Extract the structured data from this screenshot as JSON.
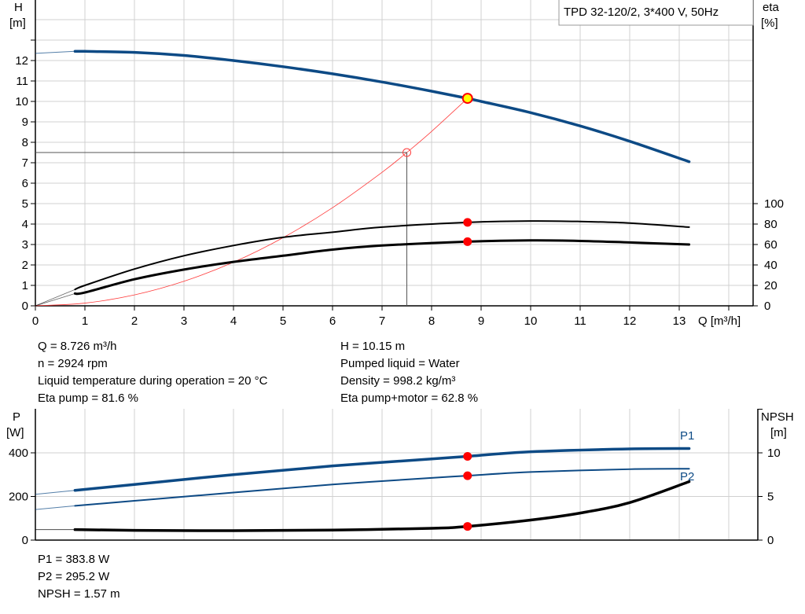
{
  "title": "TPD 32-120/2, 3*400 V, 50Hz",
  "colors": {
    "head": "#0d4a85",
    "power": "#0d4a85",
    "efficiency": "#000000",
    "npsh": "#000000",
    "system": "#ff3b3b",
    "duty_point": "#ff0000",
    "duty_fill": "#ffff00"
  },
  "info": {
    "q": "Q = 8.726 m³/h",
    "n": "n = 2924 rpm",
    "temp": "Liquid temperature during operation = 20 °C",
    "eta_pump": "Eta pump = 81.6 %",
    "h": "H = 10.15 m",
    "liquid": "Pumped liquid = Water",
    "density": "Density = 998.2 kg/m³",
    "eta_total": "Eta pump+motor = 62.8 %",
    "p1": "P1 = 383.8 W",
    "p2": "P2 = 295.2 W",
    "npsh": "NPSH = 1.57 m"
  },
  "chart_data": [
    {
      "type": "line",
      "xlabel": "Q [m³/h]",
      "ylabel": "H",
      "ylabel_unit": "[m]",
      "y2label": "eta",
      "y2label_unit": "[%]",
      "xlim": [
        0,
        14.5
      ],
      "ylim": [
        0,
        15
      ],
      "y2lim": [
        0,
        100
      ],
      "grid": true,
      "x_ticks": [
        "0",
        "1",
        "2",
        "3",
        "4",
        "5",
        "6",
        "7",
        "8",
        "9",
        "10",
        "11",
        "12",
        "13"
      ],
      "y_ticks": [
        "0",
        "1",
        "2",
        "3",
        "4",
        "5",
        "6",
        "7",
        "8",
        "9",
        "10",
        "11",
        "12"
      ],
      "y2_ticks": [
        "0",
        "20",
        "40",
        "60",
        "80",
        "100"
      ],
      "series": [
        {
          "key": "head",
          "axis": "left",
          "x": [
            0.8,
            1,
            2,
            3,
            4,
            5,
            6,
            7,
            8,
            8.726,
            9,
            10,
            11,
            12,
            13.2
          ],
          "y": [
            12.45,
            12.45,
            12.4,
            12.25,
            12.0,
            11.7,
            11.35,
            10.95,
            10.5,
            10.15,
            10.0,
            9.45,
            8.8,
            8.05,
            7.05
          ],
          "extrapolated_from": [
            0,
            12.35
          ]
        },
        {
          "key": "eta_pump",
          "axis": "right",
          "x": [
            0.8,
            1,
            2,
            3,
            4,
            5,
            6,
            7,
            8.726,
            10,
            11,
            12,
            13.2
          ],
          "y": [
            16,
            20,
            36,
            49,
            59,
            67,
            72,
            77,
            81.6,
            83,
            82.5,
            81,
            77
          ]
        },
        {
          "key": "eta_total",
          "axis": "right",
          "x": [
            0.8,
            1,
            2,
            3,
            4,
            5,
            6,
            7,
            8.726,
            10,
            11,
            12,
            13.2
          ],
          "y": [
            12,
            13,
            26,
            35.5,
            43,
            49,
            55,
            59,
            62.8,
            64,
            63.5,
            62,
            60
          ]
        },
        {
          "key": "system",
          "axis": "left",
          "x": [
            0,
            1,
            2,
            3,
            4,
            5,
            6,
            7,
            7.5,
            8,
            8.726
          ],
          "y": [
            0,
            0.133,
            0.533,
            1.2,
            2.133,
            3.333,
            4.8,
            6.533,
            7.5,
            8.533,
            10.15
          ]
        }
      ],
      "duty_point": {
        "q": 8.726,
        "h": 10.15,
        "eta_pump": 81.6,
        "eta_total": 62.8
      },
      "requested_point": {
        "q": 7.5,
        "h": 7.5
      }
    },
    {
      "type": "line",
      "ylabel": "P",
      "ylabel_unit": "[W]",
      "y2label": "NPSH",
      "y2label_unit": "[m]",
      "ylim": [
        0,
        600
      ],
      "y2lim": [
        0,
        15
      ],
      "y_ticks": [
        "0",
        "200",
        "400"
      ],
      "y2_ticks": [
        "0",
        "5",
        "10"
      ],
      "grid": true,
      "series": [
        {
          "key": "p1",
          "name": "P1",
          "axis": "left",
          "x": [
            0.8,
            2,
            4,
            6,
            8,
            8.726,
            10,
            12,
            13.2
          ],
          "y": [
            228,
            255,
            300,
            340,
            372,
            383.8,
            405,
            418,
            420
          ],
          "extrapolated_from": [
            0,
            210
          ]
        },
        {
          "key": "p2",
          "name": "P2",
          "axis": "left",
          "x": [
            0.8,
            2,
            4,
            6,
            8,
            8.726,
            10,
            12,
            13.2
          ],
          "y": [
            157,
            180,
            218,
            255,
            285,
            295.2,
            312,
            325,
            327
          ],
          "extrapolated_from": [
            0,
            140
          ]
        },
        {
          "key": "npsh",
          "axis": "right",
          "x": [
            0.8,
            2,
            4,
            6,
            8,
            8.726,
            10,
            11,
            12,
            13.2
          ],
          "y": [
            1.2,
            1.12,
            1.08,
            1.15,
            1.35,
            1.57,
            2.3,
            3.1,
            4.3,
            6.7
          ],
          "extrapolated_from": [
            0,
            1.2
          ]
        }
      ],
      "duty_point": {
        "q": 8.726,
        "p1": 383.8,
        "p2": 295.2,
        "npsh": 1.57
      }
    }
  ]
}
